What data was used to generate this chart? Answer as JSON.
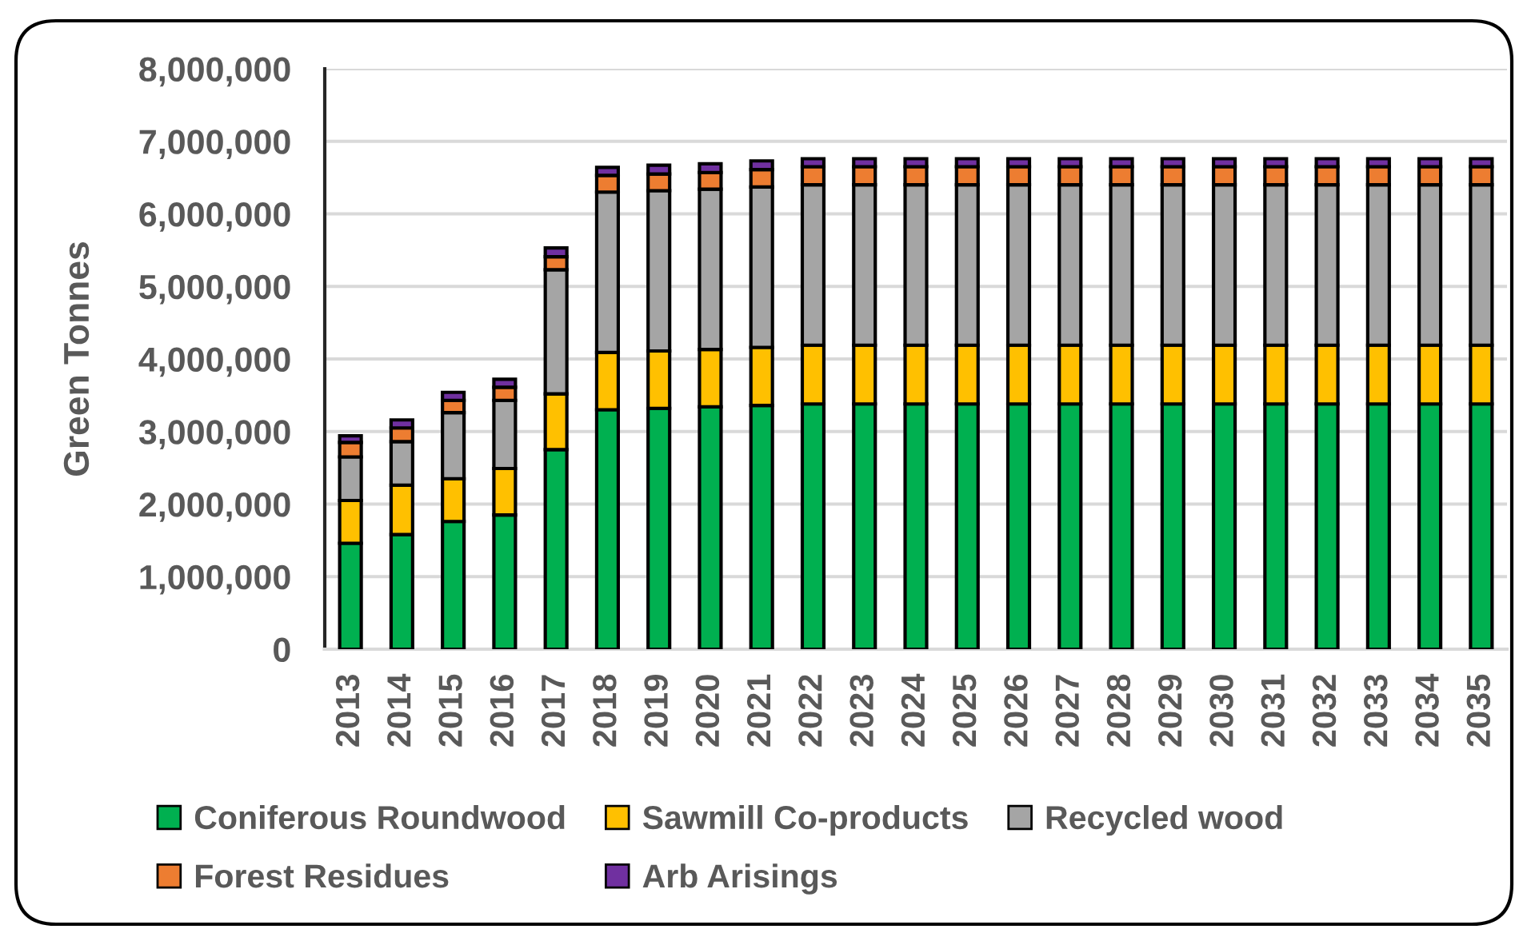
{
  "chart_data": {
    "type": "bar",
    "stacked": true,
    "ylabel": "Green Tonnes",
    "categories": [
      "2013",
      "2014",
      "2015",
      "2016",
      "2017",
      "2018",
      "2019",
      "2020",
      "2021",
      "2022",
      "2023",
      "2024",
      "2025",
      "2026",
      "2027",
      "2028",
      "2029",
      "2030",
      "2031",
      "2032",
      "2033",
      "2034",
      "2035"
    ],
    "series": [
      {
        "name": "Coniferous Roundwood",
        "color": "#00b050",
        "values": [
          1460000,
          1580000,
          1760000,
          1850000,
          2750000,
          3300000,
          3320000,
          3340000,
          3360000,
          3380000,
          3380000,
          3380000,
          3380000,
          3380000,
          3380000,
          3380000,
          3380000,
          3380000,
          3380000,
          3380000,
          3380000,
          3380000,
          3380000
        ]
      },
      {
        "name": "Sawmill Co-products",
        "color": "#ffc000",
        "values": [
          590000,
          680000,
          590000,
          640000,
          770000,
          790000,
          790000,
          790000,
          800000,
          810000,
          810000,
          810000,
          810000,
          810000,
          810000,
          810000,
          810000,
          810000,
          810000,
          810000,
          810000,
          810000,
          810000
        ]
      },
      {
        "name": "Recycled wood",
        "color": "#a5a5a5",
        "values": [
          600000,
          600000,
          910000,
          940000,
          1710000,
          2210000,
          2210000,
          2210000,
          2210000,
          2210000,
          2210000,
          2210000,
          2210000,
          2210000,
          2210000,
          2210000,
          2210000,
          2210000,
          2210000,
          2210000,
          2210000,
          2210000,
          2210000
        ]
      },
      {
        "name": "Forest Residues",
        "color": "#ed7d31",
        "values": [
          200000,
          190000,
          170000,
          180000,
          180000,
          230000,
          230000,
          230000,
          240000,
          250000,
          250000,
          250000,
          250000,
          250000,
          250000,
          250000,
          250000,
          250000,
          250000,
          250000,
          250000,
          250000,
          250000
        ]
      },
      {
        "name": "Arb Arisings",
        "color": "#7030a0",
        "values": [
          90000,
          110000,
          110000,
          110000,
          120000,
          110000,
          120000,
          120000,
          120000,
          110000,
          110000,
          110000,
          110000,
          110000,
          110000,
          110000,
          110000,
          110000,
          110000,
          110000,
          110000,
          110000,
          110000
        ]
      }
    ],
    "ylim": [
      0,
      8000000
    ],
    "yticks": [
      {
        "value": 0,
        "label": "0"
      },
      {
        "value": 1000000,
        "label": "1,000,000"
      },
      {
        "value": 2000000,
        "label": "2,000,000"
      },
      {
        "value": 3000000,
        "label": "3,000,000"
      },
      {
        "value": 4000000,
        "label": "4,000,000"
      },
      {
        "value": 5000000,
        "label": "5,000,000"
      },
      {
        "value": 6000000,
        "label": "6,000,000"
      },
      {
        "value": 7000000,
        "label": "7,000,000"
      },
      {
        "value": 8000000,
        "label": "8,000,000"
      }
    ],
    "grid": "y",
    "legend": "bottom"
  }
}
